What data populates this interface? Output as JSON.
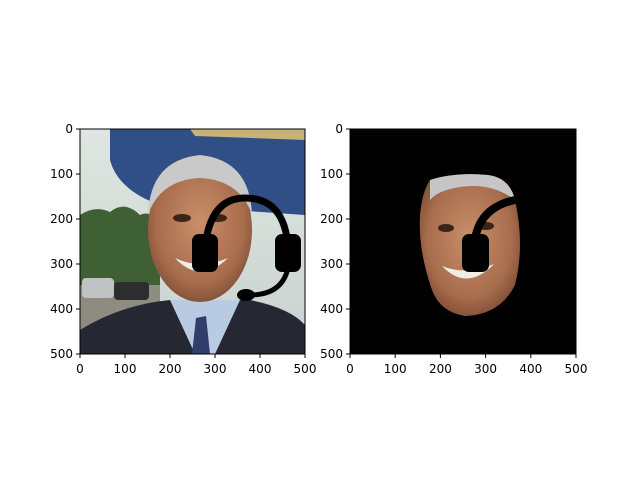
{
  "chart_data": [
    {
      "type": "image",
      "title": "",
      "xlim": [
        0,
        500
      ],
      "ylim": [
        500,
        0
      ],
      "xticks": [
        0,
        100,
        200,
        300,
        400,
        500
      ],
      "yticks": [
        0,
        100,
        200,
        300,
        400,
        500
      ],
      "content": "photo of a smiling man in a suit in front of an airplane, with a black headset drawn over the face",
      "overlay": "headset",
      "overlay_color": "#000000"
    },
    {
      "type": "image",
      "title": "",
      "xlim": [
        0,
        500
      ],
      "ylim": [
        500,
        0
      ],
      "xticks": [
        0,
        100,
        200,
        300,
        400,
        500
      ],
      "yticks": [
        0,
        100,
        200,
        300,
        400,
        500
      ],
      "content": "segmented face region on a black background, partially covered by a black headset",
      "background_color": "#000000"
    }
  ]
}
